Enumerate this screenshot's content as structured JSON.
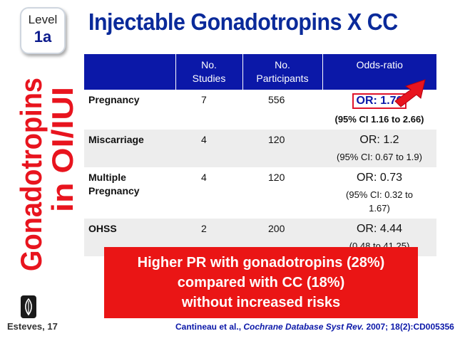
{
  "level": {
    "label": "Level",
    "value": "1a"
  },
  "side_title": {
    "line1": "Gonadotropins",
    "line2": "in OI/IUI"
  },
  "title": "Injectable Gonadotropins X CC",
  "table": {
    "headers": [
      "",
      "No.\nStudies",
      "No.\nParticipants",
      "Odds-ratio"
    ],
    "header_studies": [
      "No.",
      "Studies"
    ],
    "header_participants": [
      "No.",
      "Participants"
    ],
    "header_or": "Odds-ratio",
    "rows": [
      {
        "outcome": "Pregnancy",
        "studies": "7",
        "participants": "556",
        "or": "OR: 1.76",
        "ci": "(95% CI 1.16 to 2.66)",
        "highlight": true
      },
      {
        "outcome": "Miscarriage",
        "studies": "4",
        "participants": "120",
        "or": "OR: 1.2",
        "ci": "(95% CI: 0.67 to 1.9)",
        "highlight": false
      },
      {
        "outcome": "Multiple Pregnancy",
        "outcome_line1": "Multiple",
        "outcome_line2": "Pregnancy",
        "studies": "4",
        "participants": "120",
        "or": "OR: 0.73",
        "ci_line1": "(95% CI: 0.32 to",
        "ci_line2": "1.67)",
        "highlight": false
      },
      {
        "outcome": "OHSS",
        "studies": "2",
        "participants": "200",
        "or": "OR: 4.44",
        "ci": "(0.48 to 41.25)",
        "highlight": false
      }
    ]
  },
  "callout": {
    "line1": "Higher PR with gonadotropins (28%)",
    "line2": "compared with CC (18%)",
    "line3": "without increased risks"
  },
  "footer": {
    "author": "Esteves, 17",
    "citation_authors": "Cantineau et al., ",
    "citation_journal": "Cochrane Database Syst Rev.",
    "citation_rest": " 2007; 18(2):CD005356"
  },
  "colors": {
    "title_blue": "#0a2a9a",
    "header_blue": "#0b18a8",
    "side_red": "#e8141e",
    "callout_red": "#ea1515"
  }
}
